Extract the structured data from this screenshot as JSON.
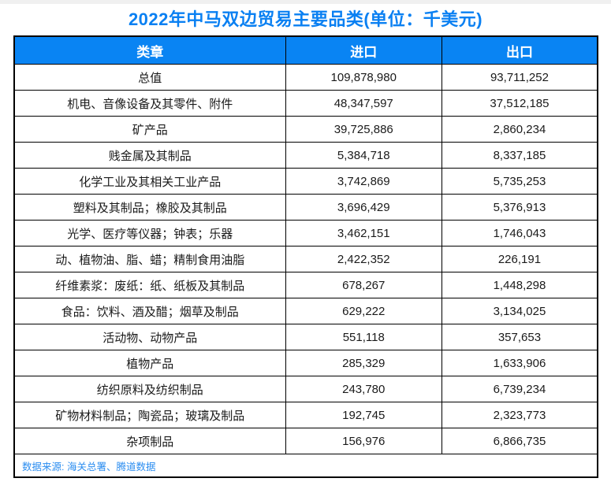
{
  "title": "2022年中马双边贸易主要品类(单位：千美元)",
  "colors": {
    "accent_blue": "#0984f3",
    "title_blue": "#0a80f2",
    "header_text": "#ffffff",
    "source_text": "#2b8df0",
    "border": "#000000"
  },
  "table": {
    "headers": [
      "类章",
      "进口",
      "出口"
    ],
    "rows": [
      {
        "category": "总值",
        "import": "109,878,980",
        "export": "93,711,252"
      },
      {
        "category": "机电、音像设备及其零件、附件",
        "import": "48,347,597",
        "export": "37,512,185"
      },
      {
        "category": "矿产品",
        "import": "39,725,886",
        "export": "2,860,234"
      },
      {
        "category": "贱金属及其制品",
        "import": "5,384,718",
        "export": "8,337,185"
      },
      {
        "category": "化学工业及其相关工业产品",
        "import": "3,742,869",
        "export": "5,735,253"
      },
      {
        "category": "塑料及其制品；橡胶及其制品",
        "import": "3,696,429",
        "export": "5,376,913"
      },
      {
        "category": "光学、医疗等仪器；钟表；乐器",
        "import": "3,462,151",
        "export": "1,746,043"
      },
      {
        "category": "动、植物油、脂、蜡；精制食用油脂",
        "import": "2,422,352",
        "export": "226,191"
      },
      {
        "category": "纤维素浆：废纸：纸、纸板及其制品",
        "import": "678,267",
        "export": "1,448,298"
      },
      {
        "category": "食品：饮料、酒及醋；烟草及制品",
        "import": "629,222",
        "export": "3,134,025"
      },
      {
        "category": "活动物、动物产品",
        "import": "551,118",
        "export": "357,653"
      },
      {
        "category": "植物产品",
        "import": "285,329",
        "export": "1,633,906"
      },
      {
        "category": "纺织原料及纺织制品",
        "import": "243,780",
        "export": "6,739,234"
      },
      {
        "category": "矿物材料制品；陶瓷品；玻璃及制品",
        "import": "192,745",
        "export": "2,323,773"
      },
      {
        "category": "杂项制品",
        "import": "156,976",
        "export": "6,866,735"
      }
    ]
  },
  "footer": {
    "source": "数据来源: 海关总署、腾道数据"
  },
  "chart_data": {
    "type": "table",
    "title": "2022年中马双边贸易主要品类",
    "unit": "千美元",
    "columns": [
      "类章",
      "进口",
      "出口"
    ],
    "rows": [
      [
        "总值",
        109878980,
        93711252
      ],
      [
        "机电、音像设备及其零件、附件",
        48347597,
        37512185
      ],
      [
        "矿产品",
        39725886,
        2860234
      ],
      [
        "贱金属及其制品",
        5384718,
        8337185
      ],
      [
        "化学工业及其相关工业产品",
        3742869,
        5735253
      ],
      [
        "塑料及其制品；橡胶及其制品",
        3696429,
        5376913
      ],
      [
        "光学、医疗等仪器；钟表；乐器",
        3462151,
        1746043
      ],
      [
        "动、植物油、脂、蜡；精制食用油脂",
        2422352,
        226191
      ],
      [
        "纤维素浆：废纸：纸、纸板及其制品",
        678267,
        1448298
      ],
      [
        "食品：饮料、酒及醋；烟草及制品",
        629222,
        3134025
      ],
      [
        "活动物、动物产品",
        551118,
        357653
      ],
      [
        "植物产品",
        285329,
        1633906
      ],
      [
        "纺织原料及纺织制品",
        243780,
        6739234
      ],
      [
        "矿物材料制品；陶瓷品；玻璃及制品",
        192745,
        2323773
      ],
      [
        "杂项制品",
        156976,
        6866735
      ]
    ],
    "source": "海关总署、腾道数据"
  }
}
